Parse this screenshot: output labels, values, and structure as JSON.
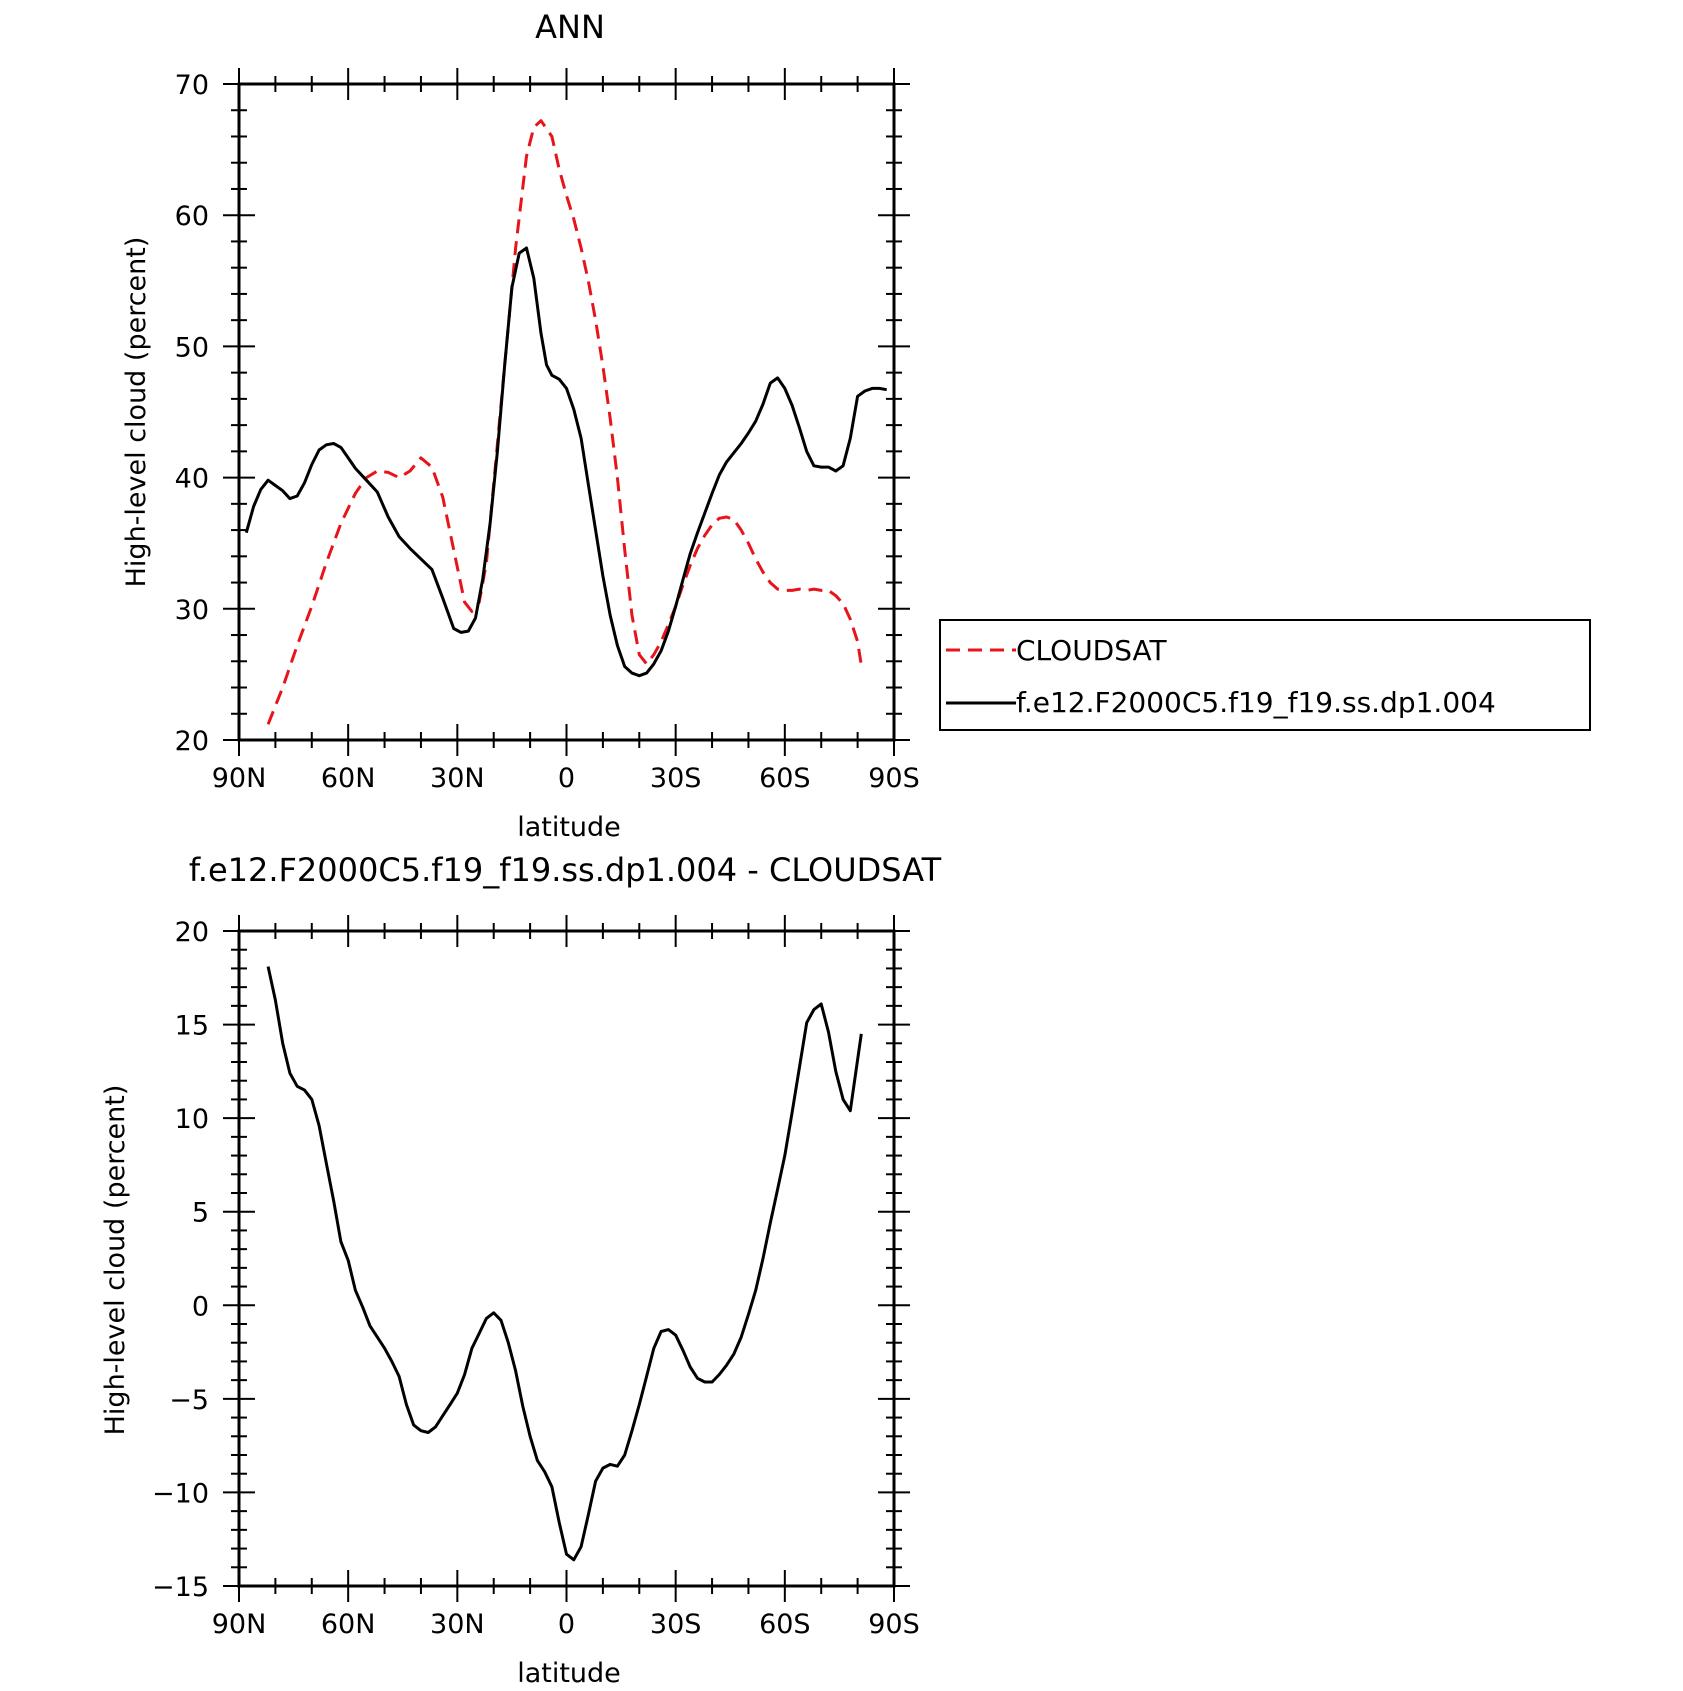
{
  "chart_data": [
    {
      "type": "line",
      "title": "ANN",
      "xlabel": "latitude",
      "ylabel": "High-level cloud (percent)",
      "xlim": [
        90,
        -90
      ],
      "ylim": [
        20,
        70
      ],
      "x_ticks": [
        {
          "value": 90,
          "label": "90N"
        },
        {
          "value": 60,
          "label": "60N"
        },
        {
          "value": 30,
          "label": "30N"
        },
        {
          "value": 0,
          "label": "0"
        },
        {
          "value": -30,
          "label": "30S"
        },
        {
          "value": -60,
          "label": "60S"
        },
        {
          "value": -90,
          "label": "90S"
        }
      ],
      "y_ticks": [
        20,
        30,
        40,
        50,
        60,
        70
      ],
      "legend": "right",
      "series": [
        {
          "name": "CLOUDSAT",
          "color": "#e8141b",
          "dash": "dashed",
          "x": [
            82,
            78,
            74,
            70,
            66,
            62,
            58,
            55,
            52,
            49,
            46,
            43,
            40,
            37,
            34,
            31,
            28,
            26,
            24,
            22,
            20,
            17,
            14,
            11,
            9,
            7,
            6,
            4,
            2,
            0,
            -2,
            -4,
            -6,
            -8,
            -10,
            -12,
            -14,
            -16,
            -18,
            -20,
            -22,
            -24,
            -26,
            -28,
            -30,
            -32,
            -34,
            -36,
            -38,
            -40,
            -42,
            -44,
            -46,
            -48,
            -50,
            -52,
            -54,
            -56,
            -58,
            -60,
            -62,
            -64,
            -66,
            -68,
            -70,
            -72,
            -74,
            -76,
            -78,
            -80,
            -81
          ],
          "y": [
            21.2,
            24,
            27.2,
            30.2,
            33.5,
            36.5,
            38.8,
            40.0,
            40.5,
            40.4,
            40.0,
            40.5,
            41.5,
            40.8,
            38.5,
            34.5,
            30.5,
            29.8,
            30.5,
            33.5,
            39.5,
            48.5,
            57.5,
            64.5,
            66.7,
            67.2,
            66.8,
            66.0,
            63.5,
            61.5,
            59.7,
            57.5,
            55,
            52,
            48.5,
            44.5,
            40,
            34.5,
            29.5,
            26.5,
            25.8,
            26.5,
            27.5,
            28.8,
            30.2,
            31.8,
            33.3,
            34.6,
            35.6,
            36.4,
            36.9,
            37,
            36.8,
            36,
            35,
            33.8,
            32.8,
            32,
            31.5,
            31.4,
            31.4,
            31.5,
            31.4,
            31.5,
            31.4,
            31.4,
            31,
            30.4,
            29.2,
            27.5,
            25.7
          ]
        },
        {
          "name": "f.e12.F2000C5.f19_f19.ss.dp1.004",
          "color": "#000000",
          "dash": "solid",
          "x": [
            88,
            86,
            84,
            82,
            80,
            78,
            76,
            74,
            72,
            70,
            68,
            66,
            64,
            62,
            60,
            58,
            55,
            52,
            49,
            46,
            43,
            40,
            37,
            34,
            31,
            29,
            27,
            25,
            23,
            21,
            19,
            17,
            15,
            13,
            11,
            9,
            7,
            5.5,
            4,
            2,
            0,
            -2,
            -4,
            -6,
            -8,
            -10,
            -12,
            -14,
            -16,
            -18,
            -20,
            -22,
            -24,
            -26,
            -28,
            -30,
            -32,
            -34,
            -36,
            -38,
            -40,
            -42,
            -44,
            -46,
            -48,
            -50,
            -52,
            -54,
            -56,
            -58,
            -60,
            -62,
            -64,
            -66,
            -68,
            -70,
            -72,
            -74,
            -76,
            -78,
            -80,
            -82,
            -84,
            -86,
            -88
          ],
          "y": [
            35.8,
            37.8,
            39.1,
            39.8,
            39.4,
            39,
            38.4,
            38.6,
            39.6,
            41,
            42.1,
            42.5,
            42.6,
            42.3,
            41.5,
            40.7,
            39.8,
            38.9,
            37.0,
            35.5,
            34.6,
            33.8,
            33,
            30.8,
            28.5,
            28.2,
            28.3,
            29.3,
            32.3,
            36.5,
            42,
            48.5,
            54.5,
            57.1,
            57.5,
            55.2,
            51,
            48.6,
            47.8,
            47.5,
            46.8,
            45.2,
            43,
            39.5,
            36.0,
            32.5,
            29.5,
            27.2,
            25.6,
            25.1,
            24.9,
            25.1,
            25.8,
            26.8,
            28.3,
            30.2,
            32.2,
            34.2,
            35.8,
            37.3,
            38.8,
            40.2,
            41.2,
            41.9,
            42.6,
            43.4,
            44.3,
            45.6,
            47.2,
            47.6,
            46.8,
            45.5,
            43.8,
            42.0,
            40.9,
            40.8,
            40.8,
            40.5,
            40.9,
            43,
            46.2,
            46.6,
            46.8,
            46.8,
            46.7
          ]
        }
      ]
    },
    {
      "type": "line",
      "title": "f.e12.F2000C5.f19_f19.ss.dp1.004 - CLOUDSAT",
      "xlabel": "latitude",
      "ylabel": "High-level cloud (percent)",
      "xlim": [
        90,
        -90
      ],
      "ylim": [
        -15,
        20
      ],
      "x_ticks": [
        {
          "value": 90,
          "label": "90N"
        },
        {
          "value": 60,
          "label": "60N"
        },
        {
          "value": 30,
          "label": "30N"
        },
        {
          "value": 0,
          "label": "0"
        },
        {
          "value": -30,
          "label": "30S"
        },
        {
          "value": -60,
          "label": "60S"
        },
        {
          "value": -90,
          "label": "90S"
        }
      ],
      "y_ticks": [
        -15,
        -10,
        -5,
        0,
        5,
        10,
        15,
        20
      ],
      "series": [
        {
          "color": "#000000",
          "dash": "solid",
          "x": [
            82,
            80,
            78,
            76,
            74,
            72,
            70,
            68,
            66,
            64,
            62,
            60,
            58,
            56,
            54,
            52,
            50,
            48,
            46,
            44,
            42,
            40,
            38,
            36,
            34,
            32,
            30,
            28,
            26,
            24,
            22,
            20,
            18,
            16,
            14,
            12,
            10,
            8,
            6,
            4,
            2,
            0,
            -2,
            -4,
            -6,
            -8,
            -10,
            -12,
            -14,
            -16,
            -18,
            -20,
            -22,
            -24,
            -26,
            -28,
            -30,
            -32,
            -34,
            -36,
            -38,
            -40,
            -42,
            -44,
            -46,
            -48,
            -50,
            -52,
            -54,
            -56,
            -58,
            -60,
            -62,
            -64,
            -66,
            -68,
            -70,
            -72,
            -74,
            -76,
            -78,
            -81
          ],
          "y": [
            18.1,
            16.3,
            14,
            12.4,
            11.7,
            11.5,
            11.0,
            9.6,
            7.6,
            5.6,
            3.4,
            2.4,
            0.8,
            -0.1,
            -1.1,
            -1.7,
            -2.3,
            -3.0,
            -3.8,
            -5.3,
            -6.4,
            -6.7,
            -6.8,
            -6.5,
            -5.9,
            -5.3,
            -4.7,
            -3.7,
            -2.3,
            -1.5,
            -0.7,
            -0.4,
            -0.8,
            -2.0,
            -3.5,
            -5.4,
            -7.0,
            -8.3,
            -8.9,
            -9.7,
            -11.6,
            -13.3,
            -13.6,
            -12.9,
            -11.2,
            -9.4,
            -8.7,
            -8.5,
            -8.6,
            -8.0,
            -6.7,
            -5.3,
            -3.8,
            -2.3,
            -1.4,
            -1.3,
            -1.6,
            -2.4,
            -3.3,
            -3.9,
            -4.1,
            -4.1,
            -3.7,
            -3.2,
            -2.6,
            -1.7,
            -0.5,
            0.8,
            2.5,
            4.4,
            6.2,
            8.0,
            10.3,
            12.7,
            15.1,
            15.8,
            16.1,
            14.6,
            12.5,
            11.0,
            10.4,
            14.5
          ]
        }
      ]
    }
  ]
}
